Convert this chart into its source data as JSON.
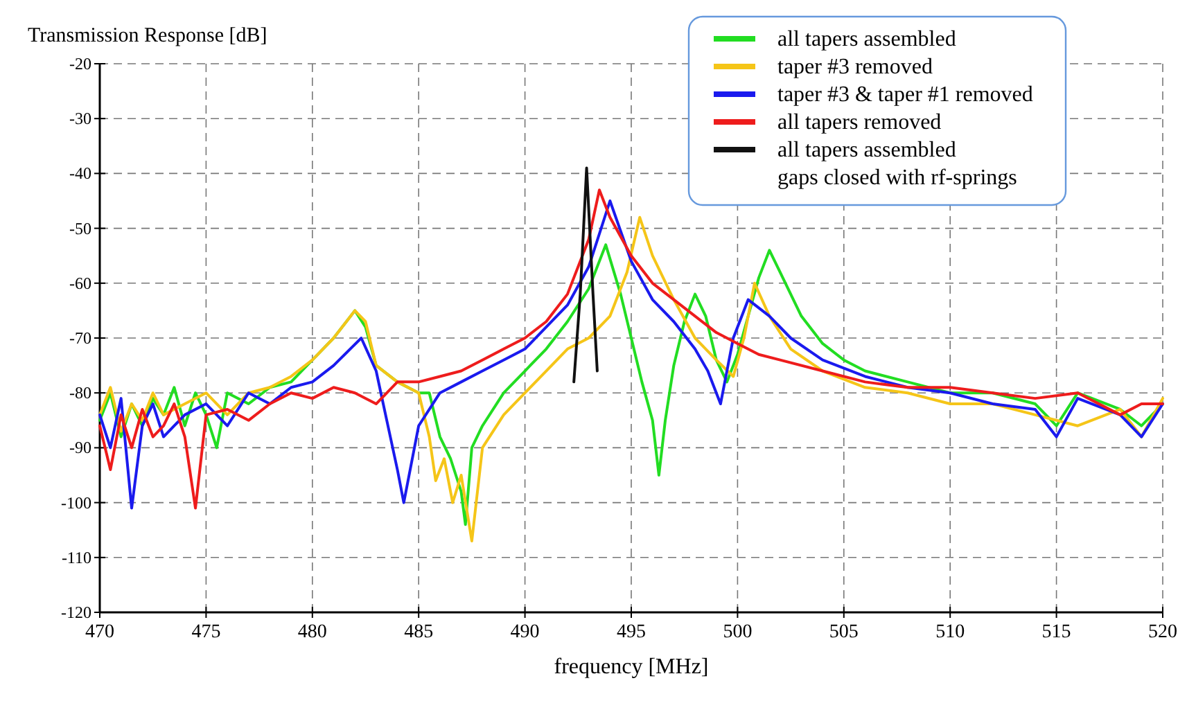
{
  "chart_data": {
    "type": "line",
    "ylabel": "Transmission Response [dB]",
    "xlabel": "frequency [MHz]",
    "xlim": [
      470,
      520
    ],
    "xticks": [
      470,
      475,
      480,
      485,
      490,
      495,
      500,
      505,
      510,
      515,
      520
    ],
    "ylim": [
      -120,
      -20
    ],
    "yticks": [
      -120,
      -110,
      -100,
      -90,
      -80,
      -70,
      -60,
      -50,
      -40,
      -30,
      -20
    ],
    "grid": true,
    "legend": "top right",
    "line_style": "solid",
    "marker": "none",
    "series": [
      {
        "name": "all tapers assembled",
        "color": "#22dd22",
        "x": [
          470,
          470.5,
          471,
          471.5,
          472,
          472.5,
          473,
          473.5,
          474,
          474.5,
          475,
          475.5,
          476,
          477,
          478,
          479,
          480,
          481,
          482,
          482.5,
          483,
          484,
          485,
          485.5,
          486,
          486.5,
          487,
          487.2,
          487.5,
          488,
          489,
          490,
          491,
          492,
          493,
          493.8,
          494.5,
          495,
          495.5,
          496,
          496.3,
          496.6,
          497,
          497.5,
          498,
          498.5,
          499,
          499.5,
          500,
          500.5,
          501,
          501.5,
          502,
          503,
          504,
          505,
          506,
          508,
          510,
          512,
          514,
          515,
          516,
          518,
          519,
          520
        ],
        "values": [
          -85,
          -80,
          -88,
          -82,
          -86,
          -81,
          -84,
          -79,
          -86,
          -80,
          -84,
          -90,
          -80,
          -82,
          -79,
          -78,
          -74,
          -70,
          -65,
          -68,
          -75,
          -78,
          -80,
          -80,
          -88,
          -92,
          -98,
          -104,
          -90,
          -86,
          -80,
          -76,
          -72,
          -67,
          -61,
          -53,
          -62,
          -70,
          -78,
          -85,
          -95,
          -85,
          -75,
          -67,
          -62,
          -66,
          -74,
          -78,
          -73,
          -66,
          -59,
          -54,
          -58,
          -66,
          -71,
          -74,
          -76,
          -78,
          -80,
          -80,
          -82,
          -86,
          -80,
          -83,
          -86,
          -82
        ]
      },
      {
        "name": "taper #3 removed",
        "color": "#f5c518",
        "x": [
          470,
          470.5,
          471,
          471.5,
          472,
          472.5,
          473,
          474,
          475,
          476,
          477,
          478,
          479,
          480,
          481,
          482,
          482.5,
          483,
          484,
          485,
          485.5,
          485.8,
          486.2,
          486.6,
          487,
          487.5,
          488,
          489,
          490,
          491,
          492,
          493,
          494,
          494.8,
          495.4,
          496,
          497,
          498,
          499,
          499.8,
          500.3,
          500.8,
          501.5,
          502.5,
          504,
          506,
          508,
          510,
          512,
          514,
          516,
          518,
          519,
          520
        ],
        "values": [
          -84,
          -79,
          -87,
          -82,
          -85,
          -80,
          -84,
          -82,
          -80,
          -84,
          -80,
          -79,
          -77,
          -74,
          -70,
          -65,
          -67,
          -75,
          -78,
          -80,
          -88,
          -96,
          -92,
          -100,
          -95,
          -107,
          -90,
          -84,
          -80,
          -76,
          -72,
          -70,
          -66,
          -58,
          -48,
          -55,
          -63,
          -70,
          -74,
          -77,
          -70,
          -60,
          -66,
          -72,
          -76,
          -79,
          -80,
          -82,
          -82,
          -84,
          -86,
          -83,
          -88,
          -81
        ]
      },
      {
        "name": "taper #3 & taper #1 removed",
        "color": "#1a1aee",
        "x": [
          470,
          470.5,
          471,
          471.5,
          472,
          472.5,
          473,
          474,
          475,
          476,
          477,
          478,
          479,
          480,
          481,
          482.3,
          483,
          483.5,
          484,
          484.3,
          485,
          486,
          487,
          488,
          489,
          490,
          491,
          492,
          493,
          494,
          495,
          496,
          497,
          498,
          498.6,
          499.2,
          499.8,
          500.5,
          501.5,
          502.5,
          504,
          506,
          508,
          510,
          512,
          514,
          515,
          516,
          518,
          519,
          520
        ],
        "values": [
          -84,
          -90,
          -81,
          -101,
          -86,
          -82,
          -88,
          -84,
          -82,
          -86,
          -80,
          -82,
          -79,
          -78,
          -75,
          -70,
          -76,
          -85,
          -94,
          -100,
          -86,
          -80,
          -78,
          -76,
          -74,
          -72,
          -68,
          -64,
          -57,
          -45,
          -56,
          -63,
          -67,
          -72,
          -76,
          -82,
          -70,
          -63,
          -66,
          -70,
          -74,
          -77,
          -79,
          -80,
          -82,
          -83,
          -88,
          -81,
          -84,
          -88,
          -82
        ]
      },
      {
        "name": "all tapers removed",
        "color": "#ee1c1c",
        "x": [
          470,
          470.5,
          471,
          471.5,
          472,
          472.5,
          473,
          473.5,
          474,
          474.5,
          475,
          476,
          477,
          478,
          479,
          480,
          481,
          482,
          483,
          484,
          485,
          486,
          487,
          488,
          489,
          490,
          491,
          492,
          493,
          493.5,
          494,
          495,
          496,
          497,
          498,
          499,
          500,
          501,
          502,
          504,
          506,
          508,
          510,
          512,
          514,
          516,
          518,
          519,
          520
        ],
        "values": [
          -86,
          -94,
          -84,
          -90,
          -83,
          -88,
          -86,
          -82,
          -88,
          -101,
          -84,
          -83,
          -85,
          -82,
          -80,
          -81,
          -79,
          -80,
          -82,
          -78,
          -78,
          -77,
          -76,
          -74,
          -72,
          -70,
          -67,
          -62,
          -52,
          -43,
          -48,
          -55,
          -60,
          -63,
          -66,
          -69,
          -71,
          -73,
          -74,
          -76,
          -78,
          -79,
          -79,
          -80,
          -81,
          -80,
          -84,
          -82,
          -82
        ]
      },
      {
        "name": "all tapers assembled\ngaps closed with rf-springs",
        "color": "#111111",
        "x": [
          492.3,
          492.6,
          492.9,
          493.2,
          493.4
        ],
        "values": [
          -78,
          -62,
          -39,
          -62,
          -76
        ]
      }
    ]
  }
}
